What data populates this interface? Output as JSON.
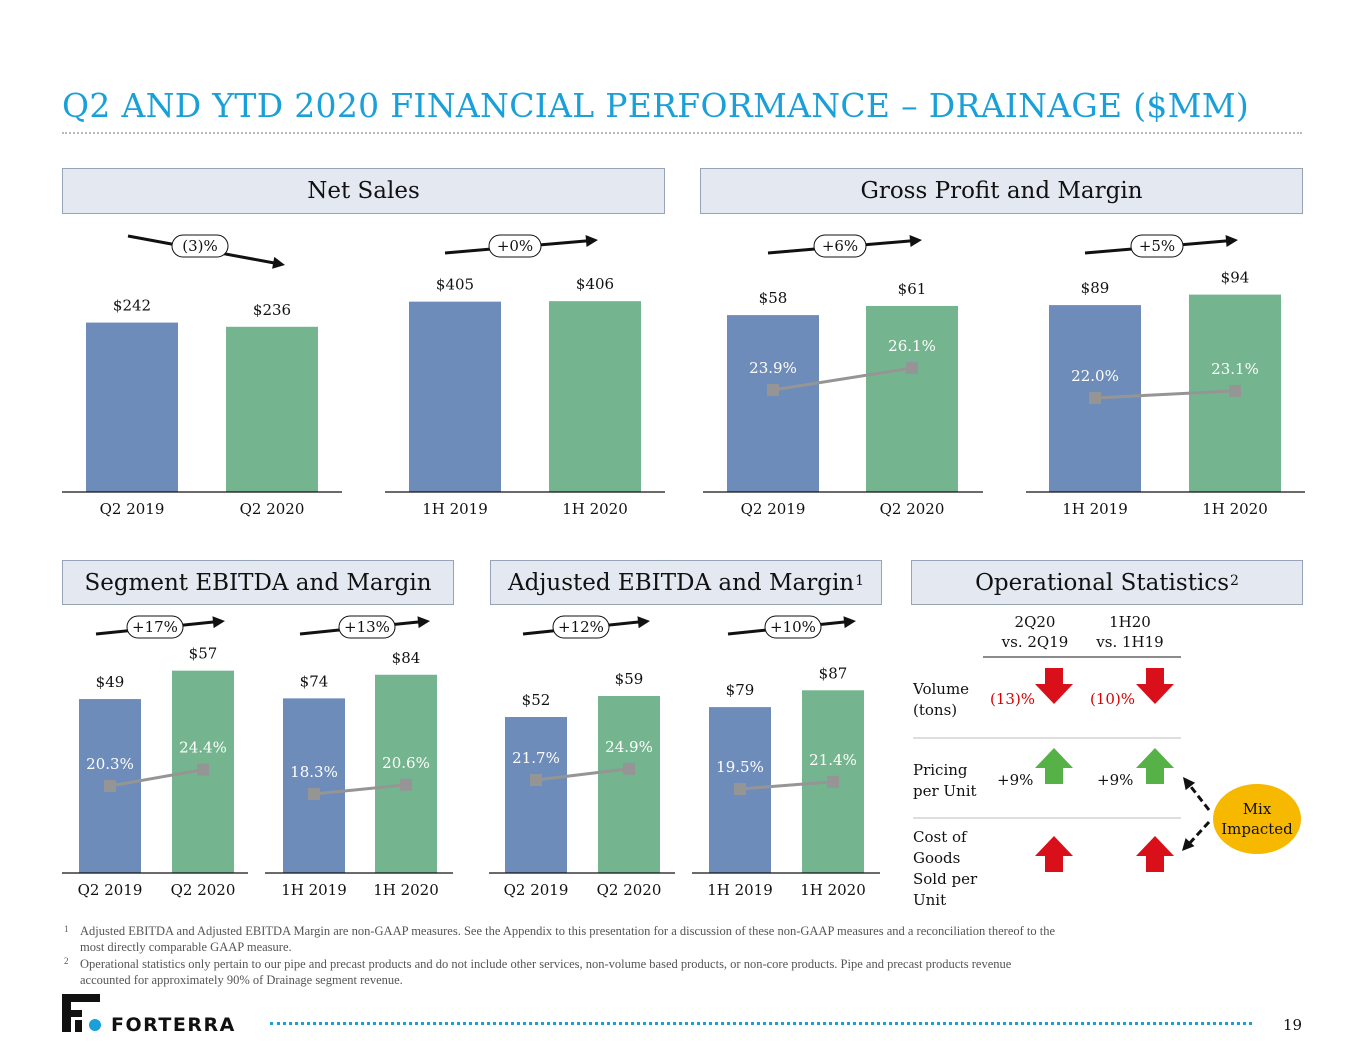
{
  "title": "Q2 AND YTD 2020 FINANCIAL PERFORMANCE – DRAINAGE ($MM)",
  "sections": {
    "net_sales": "Net Sales",
    "gross_profit": "Gross Profit and Margin",
    "segment_ebitda": "Segment EBITDA and Margin",
    "adjusted_ebitda": "Adjusted EBITDA and Margin",
    "adjusted_ebitda_sup": "1",
    "operational": "Operational Statistics",
    "operational_sup": "2"
  },
  "colors": {
    "bar_prior": "#6e8cb9",
    "bar_current": "#74b58f",
    "margin_line": "#959595",
    "title": "#1aa0d8",
    "mix_badge": "#f7b800",
    "arrow_down": "#d9101a",
    "arrow_up": "#56b146"
  },
  "chart_data": [
    {
      "type": "bar",
      "section": "Net Sales",
      "categories": [
        "Q2 2019",
        "Q2 2020"
      ],
      "values": [
        242,
        236
      ],
      "value_labels": [
        "$242",
        "$236"
      ],
      "change": "(3)%",
      "trend": "down"
    },
    {
      "type": "bar",
      "section": "Net Sales",
      "categories": [
        "1H 2019",
        "1H 2020"
      ],
      "values": [
        405,
        406
      ],
      "value_labels": [
        "$405",
        "$406"
      ],
      "change": "+0%",
      "trend": "up"
    },
    {
      "type": "bar+line",
      "section": "Gross Profit and Margin",
      "categories": [
        "Q2 2019",
        "Q2 2020"
      ],
      "values": [
        58,
        61
      ],
      "value_labels": [
        "$58",
        "$61"
      ],
      "margins": [
        23.9,
        26.1
      ],
      "margin_labels": [
        "23.9%",
        "26.1%"
      ],
      "change": "+6%",
      "trend": "up"
    },
    {
      "type": "bar+line",
      "section": "Gross Profit and Margin",
      "categories": [
        "1H 2019",
        "1H 2020"
      ],
      "values": [
        89,
        94
      ],
      "value_labels": [
        "$89",
        "$94"
      ],
      "margins": [
        22.0,
        23.1
      ],
      "margin_labels": [
        "22.0%",
        "23.1%"
      ],
      "change": "+5%",
      "trend": "up"
    },
    {
      "type": "bar+line",
      "section": "Segment EBITDA and Margin",
      "categories": [
        "Q2 2019",
        "Q2 2020"
      ],
      "values": [
        49,
        57
      ],
      "value_labels": [
        "$49",
        "$57"
      ],
      "margins": [
        20.3,
        24.4
      ],
      "margin_labels": [
        "20.3%",
        "24.4%"
      ],
      "change": "+17%",
      "trend": "up"
    },
    {
      "type": "bar+line",
      "section": "Segment EBITDA and Margin",
      "categories": [
        "1H 2019",
        "1H 2020"
      ],
      "values": [
        74,
        84
      ],
      "value_labels": [
        "$74",
        "$84"
      ],
      "margins": [
        18.3,
        20.6
      ],
      "margin_labels": [
        "18.3%",
        "20.6%"
      ],
      "change": "+13%",
      "trend": "up"
    },
    {
      "type": "bar+line",
      "section": "Adjusted EBITDA and Margin",
      "categories": [
        "Q2 2019",
        "Q2 2020"
      ],
      "values": [
        52,
        59
      ],
      "value_labels": [
        "$52",
        "$59"
      ],
      "margins": [
        21.7,
        24.9
      ],
      "margin_labels": [
        "21.7%",
        "24.9%"
      ],
      "change": "+12%",
      "trend": "up"
    },
    {
      "type": "bar+line",
      "section": "Adjusted EBITDA and Margin",
      "categories": [
        "1H 2019",
        "1H 2020"
      ],
      "values": [
        79,
        87
      ],
      "value_labels": [
        "$79",
        "$87"
      ],
      "margins": [
        19.5,
        21.4
      ],
      "margin_labels": [
        "19.5%",
        "21.4%"
      ],
      "change": "+10%",
      "trend": "up"
    }
  ],
  "operational": {
    "col1_line1": "2Q20",
    "col1_line2": "vs. 2Q19",
    "col2_line1": "1H20",
    "col2_line2": "vs. 1H19",
    "rows": [
      {
        "label_lines": [
          "Volume",
          "(tons)"
        ],
        "v1": "(13)%",
        "v2": "(10)%",
        "arrow": "down"
      },
      {
        "label_lines": [
          "Pricing",
          "per Unit"
        ],
        "v1": "+9%",
        "v2": "+9%",
        "arrow": "up"
      },
      {
        "label_lines": [
          "Cost of",
          "Goods",
          "Sold per",
          "Unit"
        ],
        "v1": "",
        "v2": "",
        "arrow": "up-red"
      }
    ],
    "mix_line1": "Mix",
    "mix_line2": "Impacted"
  },
  "footnotes": [
    {
      "num": "1",
      "lines": [
        "Adjusted EBITDA and Adjusted EBITDA Margin are non-GAAP measures.  See the Appendix to this presentation for a discussion of these non-GAAP measures and a reconciliation thereof to the",
        "most directly comparable GAAP measure."
      ]
    },
    {
      "num": "2",
      "lines": [
        "Operational statistics only pertain to our pipe and precast products and do not include other services, non-volume based products, or non-core products.  Pipe and precast products revenue",
        "accounted for approximately 90% of Drainage segment revenue."
      ]
    }
  ],
  "logo_text": "FORTERRA",
  "page_number": "19"
}
